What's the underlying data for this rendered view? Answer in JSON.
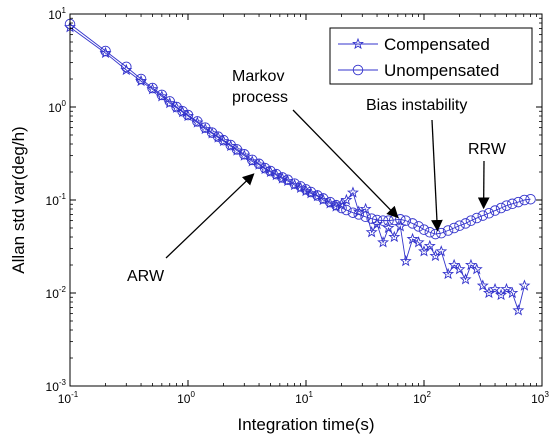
{
  "chart_data": {
    "type": "line",
    "xlabel": "Integration time(s)",
    "ylabel": "Allan std var(deg/h)",
    "xscale": "log",
    "yscale": "log",
    "xlim": [
      0.1,
      1000
    ],
    "ylim": [
      0.001,
      10
    ],
    "x_ticks": [
      0.1,
      1,
      10,
      100,
      1000
    ],
    "y_ticks": [
      0.001,
      0.01,
      0.1,
      1,
      10
    ],
    "x_tick_labels": [
      {
        "base": "10",
        "exp": "-1"
      },
      {
        "base": "10",
        "exp": "0"
      },
      {
        "base": "10",
        "exp": "1"
      },
      {
        "base": "10",
        "exp": "2"
      },
      {
        "base": "10",
        "exp": "3"
      }
    ],
    "y_tick_labels": [
      {
        "base": "10",
        "exp": "-3"
      },
      {
        "base": "10",
        "exp": "-2"
      },
      {
        "base": "10",
        "exp": "-1"
      },
      {
        "base": "10",
        "exp": "0"
      },
      {
        "base": "10",
        "exp": "1"
      }
    ],
    "grid": false,
    "legend_position": "top-right",
    "series_color": "#3333cc",
    "series": [
      {
        "name": "Compensated",
        "marker": "star",
        "points": [
          [
            0.1,
            7.2
          ],
          [
            0.2,
            3.8
          ],
          [
            0.3,
            2.5
          ],
          [
            0.4,
            1.9
          ],
          [
            0.5,
            1.55
          ],
          [
            0.6,
            1.3
          ],
          [
            0.7,
            1.1
          ],
          [
            0.8,
            0.98
          ],
          [
            0.9,
            0.88
          ],
          [
            1.0,
            0.8
          ],
          [
            1.2,
            0.68
          ],
          [
            1.4,
            0.58
          ],
          [
            1.6,
            0.52
          ],
          [
            1.8,
            0.47
          ],
          [
            2.0,
            0.43
          ],
          [
            2.3,
            0.38
          ],
          [
            2.6,
            0.34
          ],
          [
            3.0,
            0.3
          ],
          [
            3.5,
            0.26
          ],
          [
            4.0,
            0.24
          ],
          [
            4.5,
            0.215
          ],
          [
            5.0,
            0.2
          ],
          [
            5.6,
            0.185
          ],
          [
            6.3,
            0.17
          ],
          [
            7.0,
            0.16
          ],
          [
            8.0,
            0.145
          ],
          [
            9.0,
            0.135
          ],
          [
            10,
            0.125
          ],
          [
            11,
            0.118
          ],
          [
            12.5,
            0.11
          ],
          [
            14,
            0.1
          ],
          [
            16,
            0.092
          ],
          [
            18,
            0.085
          ],
          [
            20,
            0.09
          ],
          [
            22,
            0.1
          ],
          [
            25,
            0.12
          ],
          [
            28,
            0.075
          ],
          [
            32,
            0.08
          ],
          [
            36,
            0.045
          ],
          [
            40,
            0.055
          ],
          [
            45,
            0.035
          ],
          [
            50,
            0.05
          ],
          [
            56,
            0.04
          ],
          [
            63,
            0.052
          ],
          [
            70,
            0.022
          ],
          [
            80,
            0.038
          ],
          [
            90,
            0.035
          ],
          [
            100,
            0.028
          ],
          [
            112,
            0.032
          ],
          [
            125,
            0.025
          ],
          [
            140,
            0.028
          ],
          [
            160,
            0.016
          ],
          [
            180,
            0.02
          ],
          [
            200,
            0.018
          ],
          [
            225,
            0.014
          ],
          [
            250,
            0.02
          ],
          [
            280,
            0.018
          ],
          [
            315,
            0.012
          ],
          [
            355,
            0.01
          ],
          [
            400,
            0.011
          ],
          [
            450,
            0.0095
          ],
          [
            500,
            0.011
          ],
          [
            560,
            0.01
          ],
          [
            630,
            0.0065
          ],
          [
            710,
            0.012
          ]
        ]
      },
      {
        "name": "Unompensated",
        "marker": "circle",
        "points": [
          [
            0.1,
            7.8
          ],
          [
            0.2,
            4.0
          ],
          [
            0.3,
            2.7
          ],
          [
            0.4,
            2.0
          ],
          [
            0.5,
            1.6
          ],
          [
            0.6,
            1.35
          ],
          [
            0.7,
            1.15
          ],
          [
            0.8,
            1.0
          ],
          [
            0.9,
            0.9
          ],
          [
            1.0,
            0.82
          ],
          [
            1.2,
            0.7
          ],
          [
            1.4,
            0.6
          ],
          [
            1.6,
            0.53
          ],
          [
            1.8,
            0.48
          ],
          [
            2.0,
            0.44
          ],
          [
            2.3,
            0.39
          ],
          [
            2.6,
            0.35
          ],
          [
            3.0,
            0.31
          ],
          [
            3.5,
            0.27
          ],
          [
            4.0,
            0.245
          ],
          [
            4.5,
            0.22
          ],
          [
            5.0,
            0.205
          ],
          [
            5.6,
            0.19
          ],
          [
            6.3,
            0.175
          ],
          [
            7.0,
            0.165
          ],
          [
            8.0,
            0.15
          ],
          [
            9.0,
            0.14
          ],
          [
            10,
            0.13
          ],
          [
            11,
            0.122
          ],
          [
            12.5,
            0.112
          ],
          [
            14,
            0.104
          ],
          [
            16,
            0.095
          ],
          [
            18,
            0.088
          ],
          [
            20,
            0.082
          ],
          [
            22,
            0.078
          ],
          [
            25,
            0.073
          ],
          [
            28,
            0.07
          ],
          [
            32,
            0.066
          ],
          [
            36,
            0.063
          ],
          [
            40,
            0.061
          ],
          [
            45,
            0.06
          ],
          [
            50,
            0.06
          ],
          [
            56,
            0.061
          ],
          [
            63,
            0.062
          ],
          [
            70,
            0.06
          ],
          [
            80,
            0.056
          ],
          [
            90,
            0.052
          ],
          [
            100,
            0.048
          ],
          [
            112,
            0.045
          ],
          [
            125,
            0.043
          ],
          [
            140,
            0.044
          ],
          [
            160,
            0.047
          ],
          [
            180,
            0.05
          ],
          [
            200,
            0.053
          ],
          [
            225,
            0.056
          ],
          [
            250,
            0.06
          ],
          [
            280,
            0.064
          ],
          [
            315,
            0.068
          ],
          [
            355,
            0.072
          ],
          [
            400,
            0.077
          ],
          [
            450,
            0.082
          ],
          [
            500,
            0.087
          ],
          [
            560,
            0.091
          ],
          [
            630,
            0.095
          ],
          [
            710,
            0.1
          ],
          [
            800,
            0.102
          ]
        ]
      }
    ],
    "annotations": [
      {
        "lines": [
          "ARW"
        ]
      },
      {
        "lines": [
          "Markov",
          "process"
        ]
      },
      {
        "lines": [
          "Bias instability"
        ]
      },
      {
        "lines": [
          "RRW"
        ]
      }
    ]
  }
}
